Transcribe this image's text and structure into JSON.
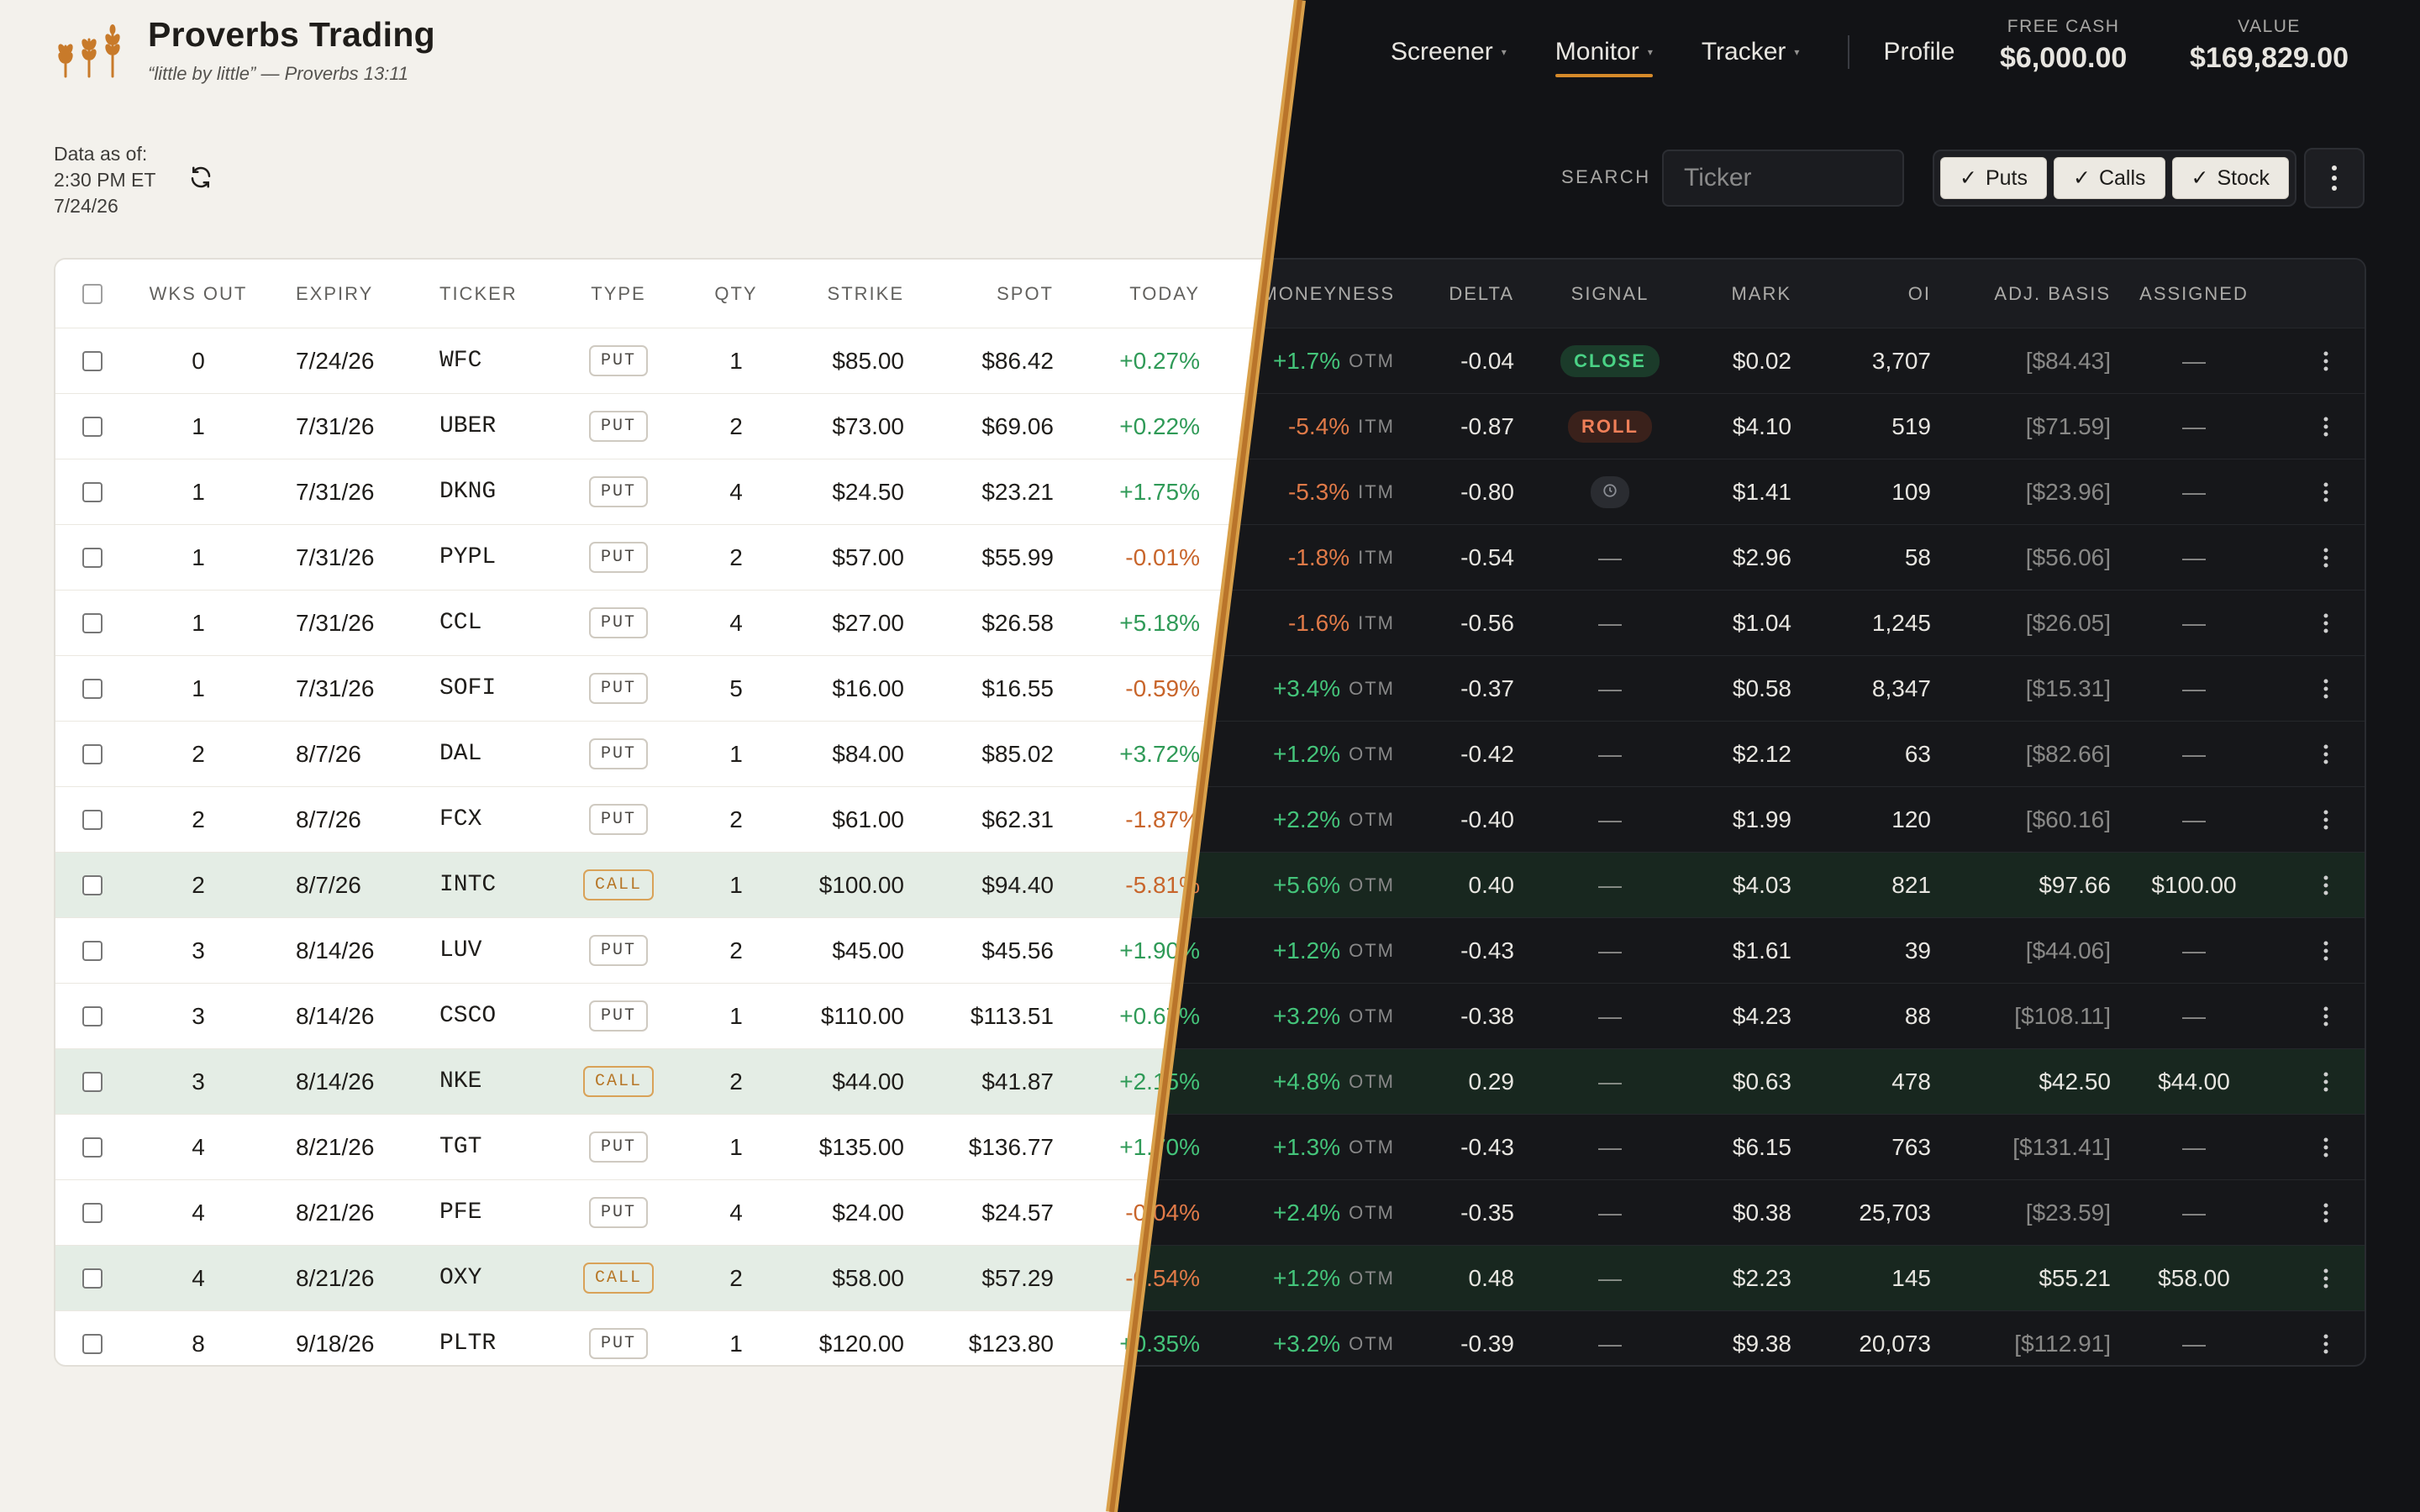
{
  "brand": {
    "title": "Proverbs Trading",
    "subtitle": "“little by little” — Proverbs 13:11"
  },
  "nav": {
    "items": [
      {
        "label": "Screener",
        "caret": "▾",
        "active": false
      },
      {
        "label": "Monitor",
        "caret": "▾",
        "active": true
      },
      {
        "label": "Tracker",
        "caret": "▾",
        "active": false
      }
    ],
    "profile": "Profile"
  },
  "metrics": {
    "free_cash": {
      "label": "FREE CASH",
      "value": "$6,000.00"
    },
    "value": {
      "label": "VALUE",
      "value": "$169,829.00"
    }
  },
  "asof": {
    "label": "Data as of:",
    "time": "2:30 PM ET",
    "date": "7/24/26"
  },
  "search": {
    "label": "SEARCH",
    "placeholder": "Ticker"
  },
  "filters": [
    {
      "label": "Puts",
      "checked": true
    },
    {
      "label": "Calls",
      "checked": true
    },
    {
      "label": "Stock",
      "checked": true
    }
  ],
  "columns": {
    "wks_out": "WKS OUT",
    "expiry": "EXPIRY",
    "ticker": "TICKER",
    "type": "TYPE",
    "qty": "QTY",
    "strike": "STRIKE",
    "spot": "SPOT",
    "today": "TODAY",
    "moneyness": "MONEYNESS",
    "delta": "DELTA",
    "signal": "SIGNAL",
    "mark": "MARK",
    "oi": "OI",
    "adj_basis": "ADJ. BASIS",
    "assigned": "ASSIGNED"
  },
  "colors": {
    "accent": "#d68a2a",
    "positive": "#2f9a57",
    "negative": "#c8652b"
  },
  "rows": [
    {
      "wks": "0",
      "expiry": "7/24/26",
      "ticker": "WFC",
      "type": "PUT",
      "qty": "1",
      "strike": "$85.00",
      "spot": "$86.42",
      "today": "+0.27%",
      "mny": "+1.7%",
      "mny_tag": "OTM",
      "delta": "-0.04",
      "signal": "CLOSE",
      "mark": "$0.02",
      "oi": "3,707",
      "basis": "[$84.43]",
      "assigned": "—"
    },
    {
      "wks": "1",
      "expiry": "7/31/26",
      "ticker": "UBER",
      "type": "PUT",
      "qty": "2",
      "strike": "$73.00",
      "spot": "$69.06",
      "today": "+0.22%",
      "mny": "-5.4%",
      "mny_tag": "ITM",
      "delta": "-0.87",
      "signal": "ROLL",
      "mark": "$4.10",
      "oi": "519",
      "basis": "[$71.59]",
      "assigned": "—"
    },
    {
      "wks": "1",
      "expiry": "7/31/26",
      "ticker": "DKNG",
      "type": "PUT",
      "qty": "4",
      "strike": "$24.50",
      "spot": "$23.21",
      "today": "+1.75%",
      "mny": "-5.3%",
      "mny_tag": "ITM",
      "delta": "-0.80",
      "signal": "clock-icon",
      "mark": "$1.41",
      "oi": "109",
      "basis": "[$23.96]",
      "assigned": "—"
    },
    {
      "wks": "1",
      "expiry": "7/31/26",
      "ticker": "PYPL",
      "type": "PUT",
      "qty": "2",
      "strike": "$57.00",
      "spot": "$55.99",
      "today": "-0.01%",
      "mny": "-1.8%",
      "mny_tag": "ITM",
      "delta": "-0.54",
      "signal": "—",
      "mark": "$2.96",
      "oi": "58",
      "basis": "[$56.06]",
      "assigned": "—"
    },
    {
      "wks": "1",
      "expiry": "7/31/26",
      "ticker": "CCL",
      "type": "PUT",
      "qty": "4",
      "strike": "$27.00",
      "spot": "$26.58",
      "today": "+5.18%",
      "mny": "-1.6%",
      "mny_tag": "ITM",
      "delta": "-0.56",
      "signal": "—",
      "mark": "$1.04",
      "oi": "1,245",
      "basis": "[$26.05]",
      "assigned": "—"
    },
    {
      "wks": "1",
      "expiry": "7/31/26",
      "ticker": "SOFI",
      "type": "PUT",
      "qty": "5",
      "strike": "$16.00",
      "spot": "$16.55",
      "today": "-0.59%",
      "mny": "+3.4%",
      "mny_tag": "OTM",
      "delta": "-0.37",
      "signal": "—",
      "mark": "$0.58",
      "oi": "8,347",
      "basis": "[$15.31]",
      "assigned": "—"
    },
    {
      "wks": "2",
      "expiry": "8/7/26",
      "ticker": "DAL",
      "type": "PUT",
      "qty": "1",
      "strike": "$84.00",
      "spot": "$85.02",
      "today": "+3.72%",
      "mny": "+1.2%",
      "mny_tag": "OTM",
      "delta": "-0.42",
      "signal": "—",
      "mark": "$2.12",
      "oi": "63",
      "basis": "[$82.66]",
      "assigned": "—"
    },
    {
      "wks": "2",
      "expiry": "8/7/26",
      "ticker": "FCX",
      "type": "PUT",
      "qty": "2",
      "strike": "$61.00",
      "spot": "$62.31",
      "today": "-1.87%",
      "mny": "+2.2%",
      "mny_tag": "OTM",
      "delta": "-0.40",
      "signal": "—",
      "mark": "$1.99",
      "oi": "120",
      "basis": "[$60.16]",
      "assigned": "—"
    },
    {
      "wks": "2",
      "expiry": "8/7/26",
      "ticker": "INTC",
      "type": "CALL",
      "qty": "1",
      "strike": "$100.00",
      "spot": "$94.40",
      "today": "-5.81%",
      "mny": "+5.6%",
      "mny_tag": "OTM",
      "delta": "0.40",
      "signal": "—",
      "mark": "$4.03",
      "oi": "821",
      "basis": "$97.66",
      "assigned": "$100.00"
    },
    {
      "wks": "3",
      "expiry": "8/14/26",
      "ticker": "LUV",
      "type": "PUT",
      "qty": "2",
      "strike": "$45.00",
      "spot": "$45.56",
      "today": "+1.90%",
      "mny": "+1.2%",
      "mny_tag": "OTM",
      "delta": "-0.43",
      "signal": "—",
      "mark": "$1.61",
      "oi": "39",
      "basis": "[$44.06]",
      "assigned": "—"
    },
    {
      "wks": "3",
      "expiry": "8/14/26",
      "ticker": "CSCO",
      "type": "PUT",
      "qty": "1",
      "strike": "$110.00",
      "spot": "$113.51",
      "today": "+0.67%",
      "mny": "+3.2%",
      "mny_tag": "OTM",
      "delta": "-0.38",
      "signal": "—",
      "mark": "$4.23",
      "oi": "88",
      "basis": "[$108.11]",
      "assigned": "—"
    },
    {
      "wks": "3",
      "expiry": "8/14/26",
      "ticker": "NKE",
      "type": "CALL",
      "qty": "2",
      "strike": "$44.00",
      "spot": "$41.87",
      "today": "+2.15%",
      "mny": "+4.8%",
      "mny_tag": "OTM",
      "delta": "0.29",
      "signal": "—",
      "mark": "$0.63",
      "oi": "478",
      "basis": "$42.50",
      "assigned": "$44.00"
    },
    {
      "wks": "4",
      "expiry": "8/21/26",
      "ticker": "TGT",
      "type": "PUT",
      "qty": "1",
      "strike": "$135.00",
      "spot": "$136.77",
      "today": "+1.70%",
      "mny": "+1.3%",
      "mny_tag": "OTM",
      "delta": "-0.43",
      "signal": "—",
      "mark": "$6.15",
      "oi": "763",
      "basis": "[$131.41]",
      "assigned": "—"
    },
    {
      "wks": "4",
      "expiry": "8/21/26",
      "ticker": "PFE",
      "type": "PUT",
      "qty": "4",
      "strike": "$24.00",
      "spot": "$24.57",
      "today": "-0.04%",
      "mny": "+2.4%",
      "mny_tag": "OTM",
      "delta": "-0.35",
      "signal": "—",
      "mark": "$0.38",
      "oi": "25,703",
      "basis": "[$23.59]",
      "assigned": "—"
    },
    {
      "wks": "4",
      "expiry": "8/21/26",
      "ticker": "OXY",
      "type": "CALL",
      "qty": "2",
      "strike": "$58.00",
      "spot": "$57.29",
      "today": "-0.54%",
      "mny": "+1.2%",
      "mny_tag": "OTM",
      "delta": "0.48",
      "signal": "—",
      "mark": "$2.23",
      "oi": "145",
      "basis": "$55.21",
      "assigned": "$58.00"
    },
    {
      "wks": "8",
      "expiry": "9/18/26",
      "ticker": "PLTR",
      "type": "PUT",
      "qty": "1",
      "strike": "$120.00",
      "spot": "$123.80",
      "today": "+0.35%",
      "mny": "+3.2%",
      "mny_tag": "OTM",
      "delta": "-0.39",
      "signal": "—",
      "mark": "$9.38",
      "oi": "20,073",
      "basis": "[$112.91]",
      "assigned": "—"
    }
  ]
}
